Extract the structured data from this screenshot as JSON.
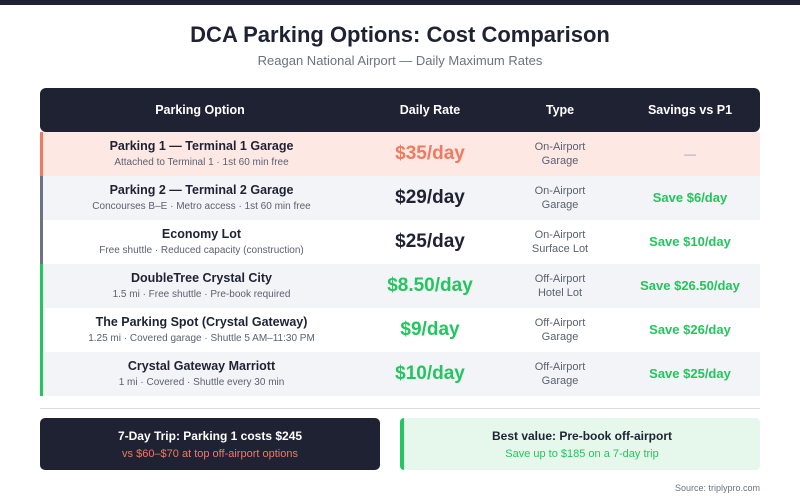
{
  "title": "DCA Parking Options: Cost Comparison",
  "subtitle": "Reagan National Airport — Daily Maximum Rates",
  "colors": {
    "dark": "#1e2233",
    "accent_red": "#f07a5f",
    "accent_green": "#22c55e",
    "row_highlight": "#fde8e4",
    "border_red": "#f07a5f",
    "border_gray": "#6b7280",
    "border_green": "#22c55e"
  },
  "chart_data": {
    "type": "table",
    "columns": [
      "Parking Option",
      "Daily Rate",
      "Type",
      "Savings vs P1"
    ],
    "rows": [
      {
        "name": "Parking 1 — Terminal 1 Garage",
        "detail": "Attached to Terminal 1 · 1st 60 min free",
        "rate_label": "$35/day",
        "rate_value": 35,
        "type_line1": "On-Airport",
        "type_line2": "Garage",
        "savings": "—",
        "rate_color": "#f07a5f",
        "savings_color": "#9ca3af",
        "border_color": "#f07a5f",
        "bg": "highlight"
      },
      {
        "name": "Parking 2 — Terminal 2 Garage",
        "detail": "Concourses B–E · Metro access · 1st 60 min free",
        "rate_label": "$29/day",
        "rate_value": 29,
        "type_line1": "On-Airport",
        "type_line2": "Garage",
        "savings": "Save $6/day",
        "rate_color": "#1e2233",
        "savings_color": "#22c55e",
        "border_color": "#6b7280",
        "bg": "alt"
      },
      {
        "name": "Economy Lot",
        "detail": "Free shuttle · Reduced capacity (construction)",
        "rate_label": "$25/day",
        "rate_value": 25,
        "type_line1": "On-Airport",
        "type_line2": "Surface Lot",
        "savings": "Save $10/day",
        "rate_color": "#1e2233",
        "savings_color": "#22c55e",
        "border_color": "#6b7280",
        "bg": "plain"
      },
      {
        "name": "DoubleTree Crystal City",
        "detail": "1.5 mi · Free shuttle · Pre-book required",
        "rate_label": "$8.50/day",
        "rate_value": 8.5,
        "type_line1": "Off-Airport",
        "type_line2": "Hotel Lot",
        "savings": "Save $26.50/day",
        "rate_color": "#22c55e",
        "savings_color": "#22c55e",
        "border_color": "#22c55e",
        "bg": "alt"
      },
      {
        "name": "The Parking Spot (Crystal Gateway)",
        "detail": "1.25 mi · Covered garage · Shuttle 5 AM–11:30 PM",
        "rate_label": "$9/day",
        "rate_value": 9,
        "type_line1": "Off-Airport",
        "type_line2": "Garage",
        "savings": "Save $26/day",
        "rate_color": "#22c55e",
        "savings_color": "#22c55e",
        "border_color": "#22c55e",
        "bg": "plain"
      },
      {
        "name": "Crystal Gateway Marriott",
        "detail": "1 mi · Covered · Shuttle every 30 min",
        "rate_label": "$10/day",
        "rate_value": 10,
        "type_line1": "Off-Airport",
        "type_line2": "Garage",
        "savings": "Save $25/day",
        "rate_color": "#22c55e",
        "savings_color": "#22c55e",
        "border_color": "#22c55e",
        "bg": "alt"
      }
    ]
  },
  "callout_left": {
    "line1": "7-Day Trip: Parking 1 costs $245",
    "line2": "vs $60–$70 at top off-airport options"
  },
  "callout_right": {
    "line1": "Best value: Pre-book off-airport",
    "line2": "Save up to $185 on a 7-day trip"
  },
  "source": "Source: triplypro.com"
}
